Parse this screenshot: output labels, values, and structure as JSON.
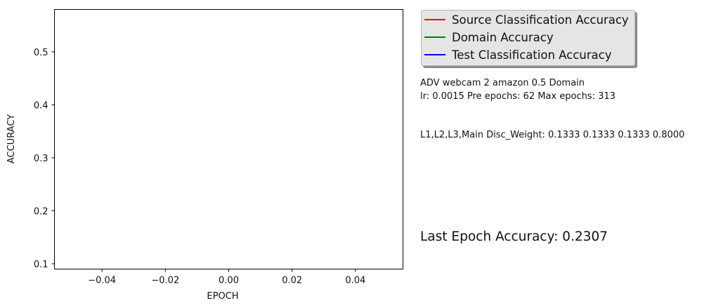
{
  "chart_data": {
    "type": "line",
    "title": "",
    "xlabel": "EPOCH",
    "ylabel": "ACCURACY",
    "xlim": [
      -0.055,
      0.055
    ],
    "ylim": [
      0.09,
      0.58
    ],
    "x_ticks": [
      -0.04,
      -0.02,
      0.0,
      0.02,
      0.04
    ],
    "x_tick_labels": [
      "−0.04",
      "−0.02",
      "0.00",
      "0.02",
      "0.04"
    ],
    "y_ticks": [
      0.1,
      0.2,
      0.3,
      0.4,
      0.5
    ],
    "y_tick_labels": [
      "0.1",
      "0.2",
      "0.3",
      "0.4",
      "0.5"
    ],
    "grid": false,
    "legend_position": "outside-right-top",
    "series": [
      {
        "name": "Source Classification Accuracy",
        "color": "#ff0000",
        "x": [],
        "values": []
      },
      {
        "name": "Domain Accuracy",
        "color": "#008000",
        "x": [],
        "values": []
      },
      {
        "name": "Test Classification Accuracy",
        "color": "#0000ff",
        "x": [],
        "values": []
      }
    ]
  },
  "info": {
    "line1": "ADV webcam 2 amazon 0.5 Domain",
    "line2": "lr: 0.0015 Pre epochs: 62 Max epochs: 313",
    "line3": "L1,L2,L3,Main Disc_Weight: 0.1333 0.1333 0.1333 0.8000",
    "last_epoch": "Last Epoch Accuracy: 0.2307"
  }
}
